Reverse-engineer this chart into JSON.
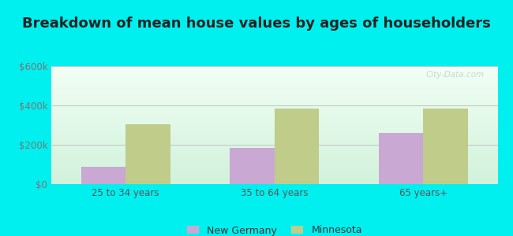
{
  "title": "Breakdown of mean house values by ages of householders",
  "categories": [
    "25 to 34 years",
    "35 to 64 years",
    "65 years+"
  ],
  "new_germany_values": [
    90000,
    185000,
    260000
  ],
  "minnesota_values": [
    305000,
    385000,
    385000
  ],
  "bar_color_ng": "#c9a8d4",
  "bar_color_mn": "#bfcc8a",
  "ylim": [
    0,
    600000
  ],
  "yticks": [
    0,
    200000,
    400000,
    600000
  ],
  "ytick_labels": [
    "$0",
    "$200k",
    "$400k",
    "$600k"
  ],
  "legend_labels": [
    "New Germany",
    "Minnesota"
  ],
  "bg_outer": "#00f0f0",
  "watermark": "City-Data.com",
  "title_fontsize": 13,
  "tick_fontsize": 8.5,
  "legend_fontsize": 9,
  "bar_width": 0.3
}
